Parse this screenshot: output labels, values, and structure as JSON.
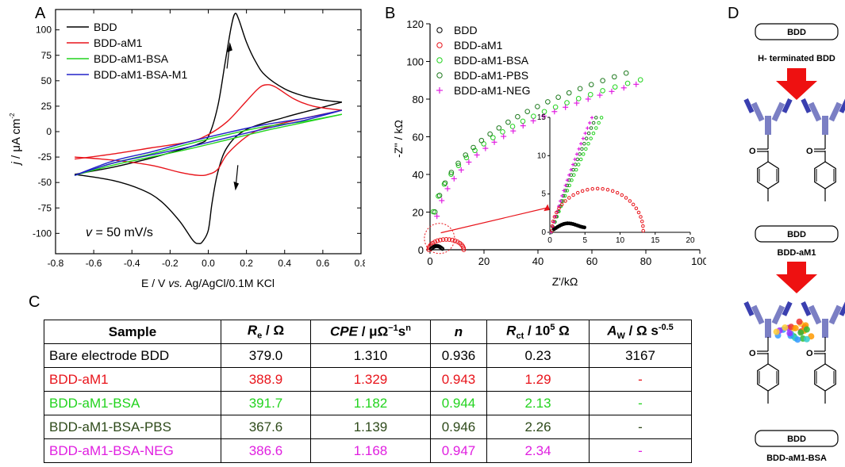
{
  "panels": {
    "a": "A",
    "b": "B",
    "c": "C",
    "d": "D"
  },
  "chart_data": [
    {
      "type": "line",
      "id": "cv",
      "xlabel_parts": [
        "E / V ",
        "vs.",
        " Ag/AgCl/0.1M KCl"
      ],
      "ylabel_parts": [
        "j",
        " / μA cm",
        "-2"
      ],
      "xlim": [
        -0.8,
        0.8
      ],
      "ylim": [
        -120,
        120
      ],
      "xticks": [
        -0.8,
        -0.6,
        -0.4,
        -0.2,
        0.0,
        0.2,
        0.4,
        0.6,
        0.8
      ],
      "xtick_labels": [
        "-0.8",
        "-0.6",
        "-0.4",
        "-0.2",
        "0.0",
        "0.2",
        "0.4",
        "0.6",
        "0.8"
      ],
      "yticks": [
        -100,
        -75,
        -50,
        -25,
        0,
        25,
        50,
        75,
        100
      ],
      "ytick_labels": [
        "-100",
        "-75",
        "-50",
        "-25",
        "0",
        "25",
        "50",
        "75",
        "100"
      ],
      "legend_position": "top-left",
      "annotation": "v = 50 mV/s",
      "annotation_parts": [
        "v",
        " = 50 mV/s"
      ],
      "series": [
        {
          "name": "BDD",
          "color": "#000000",
          "forward": [
            [
              -0.7,
              -42
            ],
            [
              -0.5,
              -35
            ],
            [
              -0.3,
              -26
            ],
            [
              -0.15,
              -18
            ],
            [
              -0.05,
              -12
            ],
            [
              0.0,
              -5
            ],
            [
              0.05,
              25
            ],
            [
              0.09,
              70
            ],
            [
              0.12,
              103
            ],
            [
              0.14,
              116
            ],
            [
              0.16,
              110
            ],
            [
              0.2,
              88
            ],
            [
              0.25,
              68
            ],
            [
              0.3,
              55
            ],
            [
              0.4,
              42
            ],
            [
              0.5,
              35
            ],
            [
              0.6,
              31
            ],
            [
              0.7,
              29
            ]
          ],
          "reverse": [
            [
              0.7,
              29
            ],
            [
              0.6,
              24
            ],
            [
              0.4,
              14
            ],
            [
              0.2,
              2
            ],
            [
              0.1,
              -15
            ],
            [
              0.05,
              -40
            ],
            [
              0.02,
              -70
            ],
            [
              0.0,
              -97
            ],
            [
              -0.03,
              -108
            ],
            [
              -0.05,
              -110
            ],
            [
              -0.08,
              -107
            ],
            [
              -0.15,
              -88
            ],
            [
              -0.25,
              -68
            ],
            [
              -0.35,
              -57
            ],
            [
              -0.5,
              -48
            ],
            [
              -0.7,
              -42
            ]
          ]
        },
        {
          "name": "BDD-aM1",
          "color": "#e8141b",
          "forward": [
            [
              -0.7,
              -27
            ],
            [
              -0.5,
              -22
            ],
            [
              -0.3,
              -16
            ],
            [
              -0.1,
              -10
            ],
            [
              0.0,
              -3
            ],
            [
              0.1,
              10
            ],
            [
              0.2,
              30
            ],
            [
              0.26,
              42
            ],
            [
              0.3,
              46
            ],
            [
              0.35,
              44
            ],
            [
              0.45,
              32
            ],
            [
              0.55,
              25
            ],
            [
              0.7,
              21
            ]
          ],
          "reverse": [
            [
              0.7,
              21
            ],
            [
              0.5,
              13
            ],
            [
              0.3,
              4
            ],
            [
              0.2,
              -5
            ],
            [
              0.1,
              -22
            ],
            [
              0.05,
              -37
            ],
            [
              0.0,
              -42
            ],
            [
              -0.05,
              -43
            ],
            [
              -0.15,
              -40
            ],
            [
              -0.3,
              -33
            ],
            [
              -0.5,
              -28
            ],
            [
              -0.7,
              -25
            ]
          ]
        },
        {
          "name": "BDD-aM1-BSA",
          "color": "#22d31e",
          "forward": [
            [
              -0.7,
              -43
            ],
            [
              -0.5,
              -31
            ],
            [
              -0.3,
              -22
            ],
            [
              -0.1,
              -12
            ],
            [
              0.1,
              -3
            ],
            [
              0.3,
              5
            ],
            [
              0.5,
              10
            ],
            [
              0.7,
              17
            ]
          ],
          "reverse": [
            [
              0.7,
              17
            ],
            [
              0.5,
              9
            ],
            [
              0.3,
              1
            ],
            [
              0.1,
              -8
            ],
            [
              -0.1,
              -17
            ],
            [
              -0.3,
              -25
            ],
            [
              -0.5,
              -33
            ],
            [
              -0.7,
              -43
            ]
          ]
        },
        {
          "name": "BDD-aM1-BSA-M1",
          "color": "#2222c8",
          "forward": [
            [
              -0.7,
              -43
            ],
            [
              -0.5,
              -29
            ],
            [
              -0.3,
              -20
            ],
            [
              -0.1,
              -10
            ],
            [
              0.1,
              -1
            ],
            [
              0.3,
              7
            ],
            [
              0.5,
              13
            ],
            [
              0.7,
              21
            ]
          ],
          "reverse": [
            [
              0.7,
              21
            ],
            [
              0.5,
              11
            ],
            [
              0.3,
              3
            ],
            [
              0.1,
              -6
            ],
            [
              -0.1,
              -15
            ],
            [
              -0.3,
              -23
            ],
            [
              -0.5,
              -31
            ],
            [
              -0.7,
              -43
            ]
          ]
        }
      ]
    },
    {
      "type": "scatter",
      "id": "nyquist",
      "xlabel": "Z'/kΩ",
      "ylabel": "-Z'' / kΩ",
      "xlim": [
        0,
        100
      ],
      "ylim": [
        0,
        120
      ],
      "xticks": [
        0,
        20,
        40,
        60,
        80,
        100
      ],
      "xtick_labels": [
        "0",
        "20",
        "40",
        "60",
        "80",
        "100"
      ],
      "yticks": [
        0,
        20,
        40,
        60,
        80,
        100,
        120
      ],
      "ytick_labels": [
        "0",
        "20",
        "40",
        "60",
        "80",
        "100",
        "120"
      ],
      "legend_position": "top-left",
      "series": [
        {
          "name": "BDD",
          "color": "#000000",
          "marker": "circle"
        },
        {
          "name": "BDD-aM1",
          "color": "#e8141b",
          "marker": "circle"
        },
        {
          "name": "BDD-aM1-BSA",
          "color": "#22d31e",
          "marker": "circle"
        },
        {
          "name": "BDD-aM1-PBS",
          "color": "#1f7a1f",
          "marker": "circle"
        },
        {
          "name": "BDD-aM1-NEG",
          "color": "#e01fe0",
          "marker": "plus"
        }
      ],
      "inset": {
        "xlim": [
          0,
          20
        ],
        "ylim": [
          0,
          15
        ],
        "xticks": [
          0,
          5,
          10,
          15,
          20
        ],
        "xtick_labels": [
          "0",
          "5",
          "10",
          "15",
          "20"
        ],
        "yticks": [
          0,
          5,
          10,
          15
        ],
        "ytick_labels": [
          "0",
          "5",
          "10",
          "15"
        ]
      }
    }
  ],
  "table": {
    "headers": [
      {
        "main": "Sample"
      },
      {
        "ital": "R",
        "sub": "e",
        "rest": " / Ω"
      },
      {
        "ital": "CPE",
        "rest": " / μΩ",
        "sup": "−1",
        "rest2": "s",
        "sup2": "n"
      },
      {
        "ital": "n"
      },
      {
        "ital": "R",
        "sub": "ct",
        "rest": " / 10",
        "sup": "5",
        "rest2": " Ω"
      },
      {
        "ital": "A",
        "sub": "W",
        "rest": " / Ω s",
        "sup": "-0.5"
      }
    ],
    "rows": [
      {
        "color": "#000000",
        "cells": [
          "Bare electrode BDD",
          "379.0",
          "1.310",
          "0.936",
          "0.23",
          "3167"
        ]
      },
      {
        "color": "#e8141b",
        "cells": [
          "BDD-aM1",
          "388.9",
          "1.329",
          "0.943",
          "1.29",
          "-"
        ]
      },
      {
        "color": "#22d31e",
        "cells": [
          "BDD-aM1-BSA",
          "391.7",
          "1.182",
          "0.944",
          "2.13",
          "-"
        ]
      },
      {
        "color": "#2e4a1a",
        "cells": [
          "BDD-aM1-BSA-PBS",
          "367.6",
          "1.139",
          "0.946",
          "2.26",
          "-"
        ]
      },
      {
        "color": "#e01fe0",
        "cells": [
          "BDD-aM1-BSA-NEG",
          "386.6",
          "1.168",
          "0.947",
          "2.34",
          "-"
        ]
      }
    ]
  },
  "diagram": {
    "electrode_label": "BDD",
    "step1_label": "H- terminated  BDD",
    "step2_label": "BDD-aM1",
    "step3_label": "BDD-aM1-BSA",
    "carbonyl_label": "O",
    "antibody_color": "#7b7fc4",
    "arrow_color": "#ee1111"
  }
}
